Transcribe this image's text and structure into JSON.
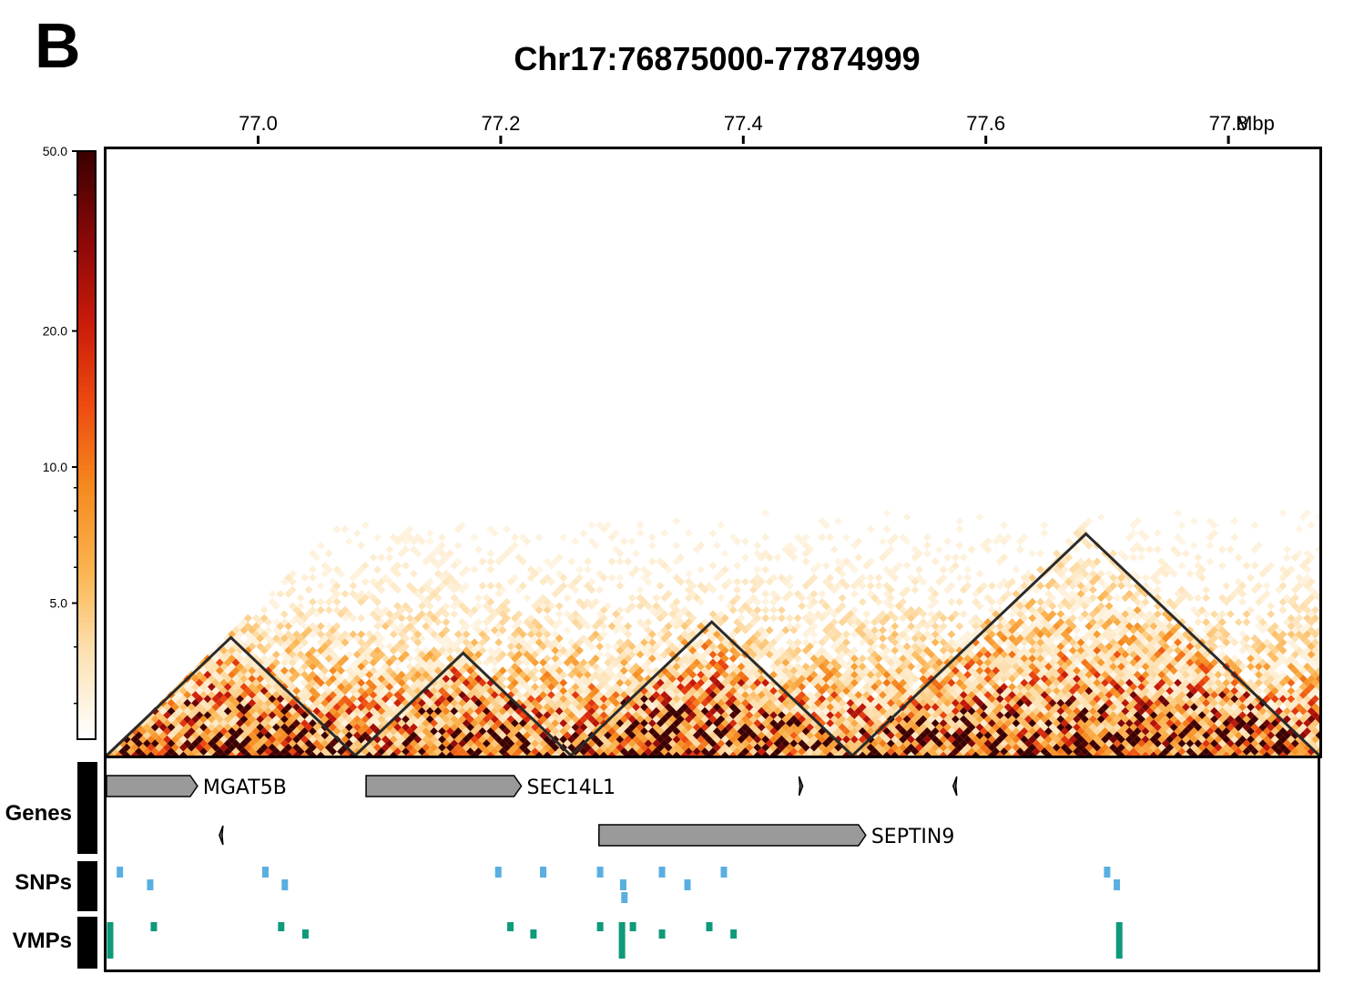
{
  "panel_label": "B",
  "chart_data": {
    "type": "heatmap",
    "title": "Chr17:76875000-77874999",
    "x_unit": "Mbp",
    "x_range": [
      76.875,
      77.875
    ],
    "x_ticks": [
      77.0,
      77.2,
      77.4,
      77.6,
      77.8
    ],
    "x_tick_labels": [
      "77.0",
      "77.2",
      "77.4",
      "77.6",
      "77.8"
    ],
    "colorbar": {
      "scale": "log",
      "min": 2.5,
      "max": 50.0,
      "ticks": [
        5.0,
        10.0,
        20.0,
        50.0
      ],
      "tick_labels": [
        "5.0",
        "10.0",
        "20.0",
        "50.0"
      ],
      "colors": [
        "#ffffff",
        "#fde2b4",
        "#fbb450",
        "#f58a1e",
        "#ee4a10",
        "#c81a0a",
        "#880808",
        "#3d0000"
      ]
    },
    "tads": [
      {
        "start": 76.875,
        "end": 77.08
      },
      {
        "start": 77.08,
        "end": 77.258
      },
      {
        "start": 77.258,
        "end": 77.49
      },
      {
        "start": 77.49,
        "end": 77.875
      }
    ],
    "tracks": {
      "labels": [
        "Genes",
        "SNPs",
        "VMPs"
      ],
      "genes": [
        {
          "name": "MGAT5B",
          "start": 76.875,
          "end": 76.95,
          "strand": "+",
          "row": 0
        },
        {
          "name": "SEC14L1",
          "start": 77.089,
          "end": 77.217,
          "strand": "+",
          "row": 0
        },
        {
          "name": "",
          "start": 77.446,
          "end": 77.449,
          "strand": "+",
          "row": 0
        },
        {
          "name": "",
          "start": 77.573,
          "end": 77.575,
          "strand": "-",
          "row": 0
        },
        {
          "name": "",
          "start": 76.968,
          "end": 76.97,
          "strand": "-",
          "row": 1
        },
        {
          "name": "SEPTIN9",
          "start": 77.281,
          "end": 77.501,
          "strand": "+",
          "row": 1
        }
      ],
      "snps": [
        [
          76.886,
          0
        ],
        [
          76.911,
          1
        ],
        [
          77.006,
          0
        ],
        [
          77.022,
          1
        ],
        [
          77.198,
          0
        ],
        [
          77.235,
          0
        ],
        [
          77.282,
          0
        ],
        [
          77.301,
          1
        ],
        [
          77.302,
          2
        ],
        [
          77.333,
          0
        ],
        [
          77.354,
          1
        ],
        [
          77.384,
          0
        ],
        [
          77.7,
          0
        ],
        [
          77.708,
          1
        ]
      ],
      "vmps": [
        [
          76.878,
          0,
          1
        ],
        [
          76.914,
          0,
          0
        ],
        [
          77.019,
          0,
          0
        ],
        [
          77.039,
          1,
          0
        ],
        [
          77.208,
          0,
          0
        ],
        [
          77.227,
          1,
          0
        ],
        [
          77.282,
          0,
          0
        ],
        [
          77.3,
          1,
          1
        ],
        [
          77.309,
          0,
          0
        ],
        [
          77.333,
          1,
          0
        ],
        [
          77.372,
          0,
          0
        ],
        [
          77.392,
          1,
          0
        ],
        [
          77.71,
          0,
          1
        ]
      ]
    }
  }
}
